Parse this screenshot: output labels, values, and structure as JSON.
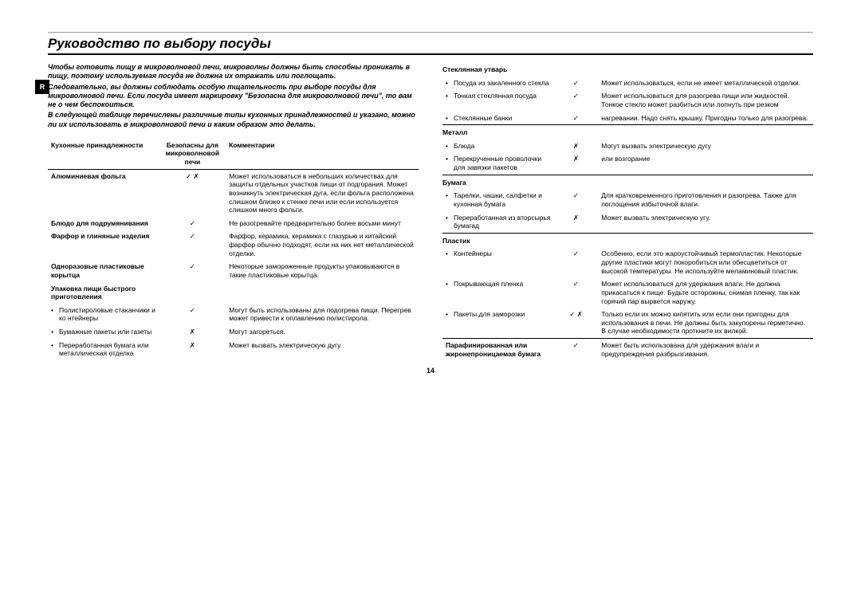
{
  "sideLabel": "R",
  "title": "Руководство по выбору посуды",
  "intro": [
    "Чтобы готовить пищу в микроволновой печи, микроволны должны быть способны проникать в пищу, поэтому используемая посуда не должна их отражать или поглощать.",
    "Следовательно, вы должны соблюдать особую тщательность при выборе посуды для микроволновой печи. Если посуда имеет маркировку \"Безопасна для микроволновой печи\", то вам не о чем беспокоиться.",
    "В следующей таблице перечислены различные типы кухонных принадлежностей и указано, можно ли их использовать в микроволновой печи и каким образом это делать."
  ],
  "headers": {
    "c1": "Кухонные принадлежности",
    "c2": "Безопасны для микроволновой печи",
    "c3": "Комментарии"
  },
  "leftRows": [
    {
      "t": "cat",
      "name": "Алюминиевая фольга",
      "safe": "✓ ✗",
      "comment": "Может использоваться в небольших количествах для защиты отдельных участков пищи от подгорания. Может возникнуть электрическая дуга, если фольга расположена слишком близко к стенке печи или если используется слишком много фольги."
    },
    {
      "t": "cat",
      "name": "Блюдо для подрумянивания",
      "safe": "✓",
      "comment": "Не разогревайте предварительно более восьми минут"
    },
    {
      "t": "cat",
      "name": "Фарфор и глиняные изделия",
      "safe": "✓",
      "comment": "Фарфор, керамика, керамика с глазурью и китайский фарфор обычно подходят, если на них нет металлической отделки."
    },
    {
      "t": "cat",
      "name": "Одноразовые пластиковые корытца",
      "safe": "✓",
      "comment": "Некоторые замороженные продукты упаковываются в такие пластиковые корытца."
    },
    {
      "t": "cat",
      "name": "Упаковка пищи быстрого приготовления",
      "safe": "",
      "comment": ""
    },
    {
      "t": "sub",
      "name": "Полистироловые стаканчики и ко нтейнеры",
      "safe": "✓",
      "comment": "Могут быть использованы для подогрева пищи. Перегрев может привести к оплавлению полистирола."
    },
    {
      "t": "sub",
      "name": "Бумажные пакеты или газеты",
      "safe": "✗",
      "comment": "Могут загореться."
    },
    {
      "t": "sub",
      "name": "Переработанная бумага или металлическая отделка",
      "safe": "✗",
      "comment": "Может вызвать электрическую дугу."
    }
  ],
  "rightGroups": [
    {
      "heading": "Стеклянная  утварь",
      "rows": [
        {
          "name": "Посуда из закаленного стекла",
          "safe": "✓",
          "comment": "Может использоваться, если не имеет металлической отделки."
        },
        {
          "name": "Тонкая стеклянная посуда",
          "safe": "✓",
          "comment": "Может использоваться для разогрева пищи или жидкостей. Тонкое стекло может разбиться или лопнуть при резком"
        },
        {
          "name": "Стеклянные  банки",
          "safe": "✓",
          "comment": "нагревании.\nНадо снять крышку. Пригодны только для разогрева."
        }
      ]
    },
    {
      "heading": "Металл",
      "rows": [
        {
          "name": "Блюда",
          "safe": "✗",
          "comment": "Могут вызвать электрическую дугу"
        },
        {
          "name": "Перекрученные проволочки для завязки пакетов",
          "safe": "✗",
          "comment": "или возгорание"
        }
      ]
    },
    {
      "heading": "Бумага",
      "rows": [
        {
          "name": "Тарелки, чашки, салфетки и кухонная бумага",
          "safe": "✓",
          "comment": "Для кратковременного приготовления и разогрева. Также для поглощения избыточной влаги."
        },
        {
          "name": "Переработанная из вторсырья бумагад",
          "safe": "✗",
          "comment": "Может вызвать электрическую угу."
        }
      ]
    },
    {
      "heading": "Пластик",
      "rows": [
        {
          "name": "Контейнеры",
          "safe": "✓",
          "comment": "Особенно, если это жароустойчивый термопластик. Некоторые другие пластики могут покоробиться или обесцветиться от высокой температуры. Не используйте меламиновый пластик."
        },
        {
          "name": "Покрывающая пленка",
          "safe": "✓",
          "comment": "Может использоваться для удержания влаги. Не должна прикасаться к пище. Будьте осторожны, снимая пленку, так как горячий пар вырвется наружу."
        },
        {
          "name": "Пакеты для заморозки",
          "safe": "✓ ✗",
          "comment": "Только если их можно кипятить или если они пригодны для использования в печи. Не должны быть закупорены герметично. В случае необходимости проткните их вилкой."
        }
      ]
    }
  ],
  "lastRow": {
    "name": "Парафинированная или жиронепроницаемая бумага",
    "safe": "✓",
    "comment": "Может быть использована для удержания влаги и предупреждения разбрызгивания."
  },
  "pageNumber": "14"
}
